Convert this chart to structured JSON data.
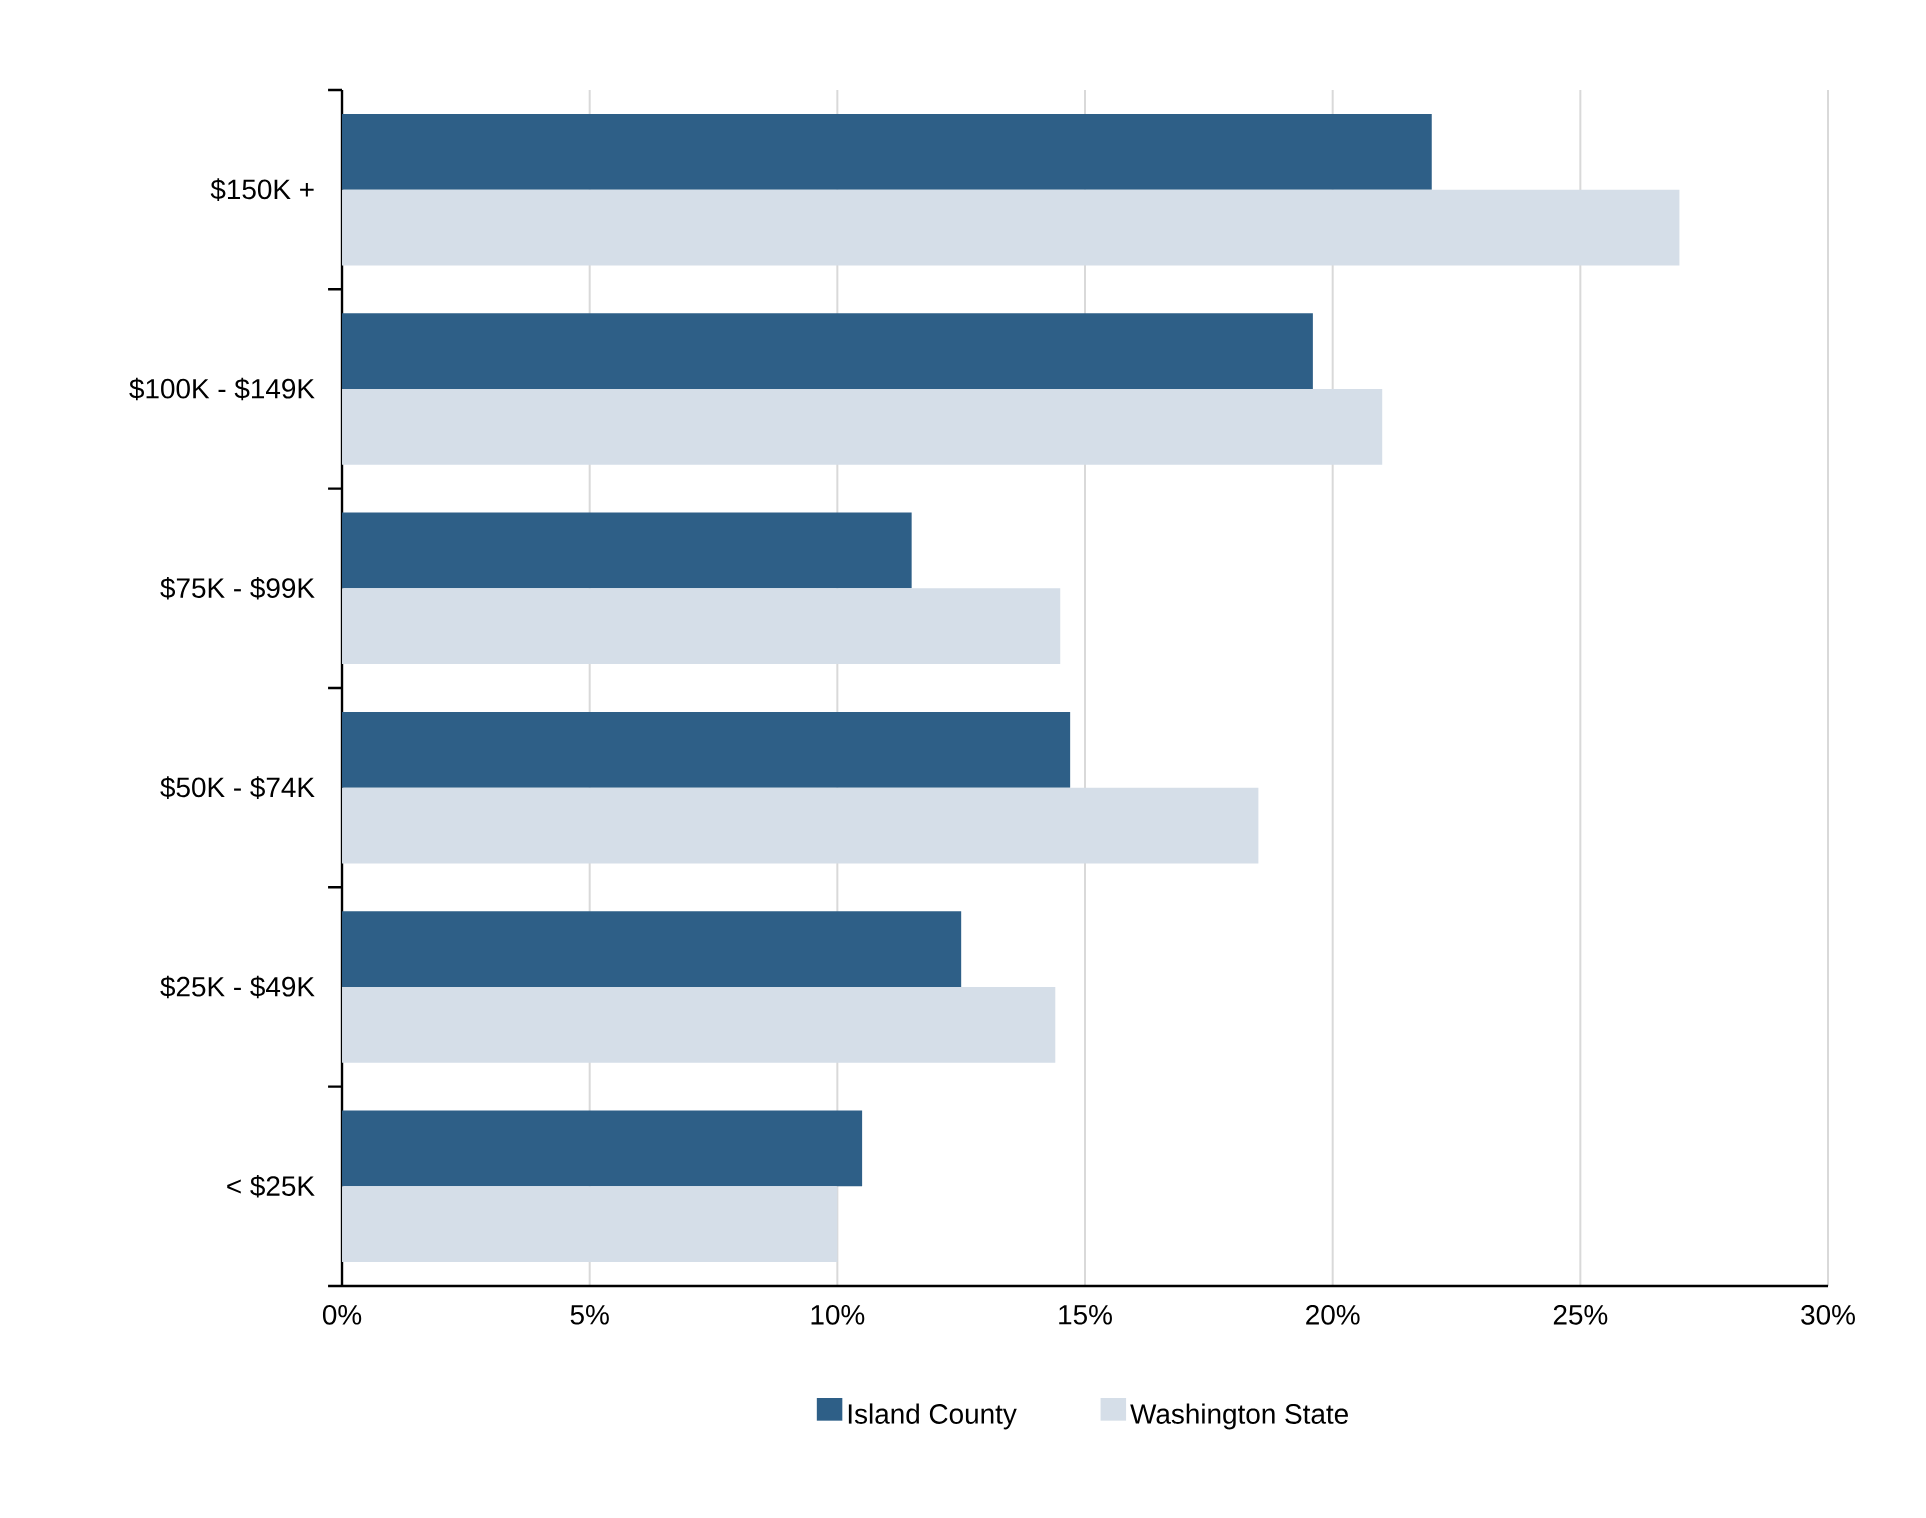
{
  "chart_data": {
    "type": "bar",
    "orientation": "horizontal",
    "categories": [
      "$150K +",
      "$100K - $149K",
      "$75K - $99K",
      "$50K - $74K",
      "$25K - $49K",
      "< $25K"
    ],
    "series": [
      {
        "name": "Island County",
        "color": "#2e5f87",
        "values": [
          22.0,
          19.6,
          11.5,
          14.7,
          12.5,
          10.5
        ]
      },
      {
        "name": "Washington State",
        "color": "#d5dee8",
        "values": [
          27.0,
          21.0,
          14.5,
          18.5,
          14.4,
          10.0
        ]
      }
    ],
    "xlim": [
      0,
      30
    ],
    "xticks": [
      {
        "value": 0,
        "label": "0%"
      },
      {
        "value": 5,
        "label": "5%"
      },
      {
        "value": 10,
        "label": "10%"
      },
      {
        "value": 15,
        "label": "15%"
      },
      {
        "value": 20,
        "label": "20%"
      },
      {
        "value": 25,
        "label": "25%"
      },
      {
        "value": 30,
        "label": "30%"
      }
    ],
    "grid": "x",
    "legend": "bottom"
  }
}
